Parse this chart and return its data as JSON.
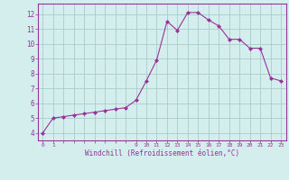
{
  "x": [
    0,
    1,
    2,
    3,
    4,
    5,
    6,
    7,
    8,
    9,
    10,
    11,
    12,
    13,
    14,
    15,
    16,
    17,
    18,
    19,
    20,
    21,
    22,
    23
  ],
  "y": [
    4.0,
    5.0,
    5.1,
    5.2,
    5.3,
    5.4,
    5.5,
    5.6,
    5.7,
    6.2,
    7.5,
    8.9,
    11.5,
    10.9,
    12.1,
    12.1,
    11.6,
    11.2,
    10.3,
    10.3,
    9.7,
    9.7,
    7.7,
    7.5
  ],
  "line_color": "#993399",
  "marker": "D",
  "marker_size": 2,
  "bg_color": "#d4eeed",
  "grid_color": "#aacccc",
  "xlabel": "Windchill (Refroidissement éolien,°C)",
  "xlabel_color": "#993399",
  "tick_color": "#993399",
  "xtick_positions": [
    0,
    1,
    9,
    10,
    11,
    12,
    13,
    14,
    15,
    16,
    17,
    18,
    19,
    20,
    21,
    22,
    23
  ],
  "xtick_labels": [
    "0",
    "1",
    "9",
    "10",
    "11",
    "12",
    "13",
    "14",
    "15",
    "16",
    "17",
    "18",
    "19",
    "20",
    "21",
    "22",
    "23"
  ],
  "ytick_labels": [
    "4",
    "5",
    "6",
    "7",
    "8",
    "9",
    "10",
    "11",
    "12"
  ],
  "ytick_values": [
    4,
    5,
    6,
    7,
    8,
    9,
    10,
    11,
    12
  ],
  "ylim": [
    3.5,
    12.7
  ],
  "xlim": [
    -0.5,
    23.5
  ]
}
